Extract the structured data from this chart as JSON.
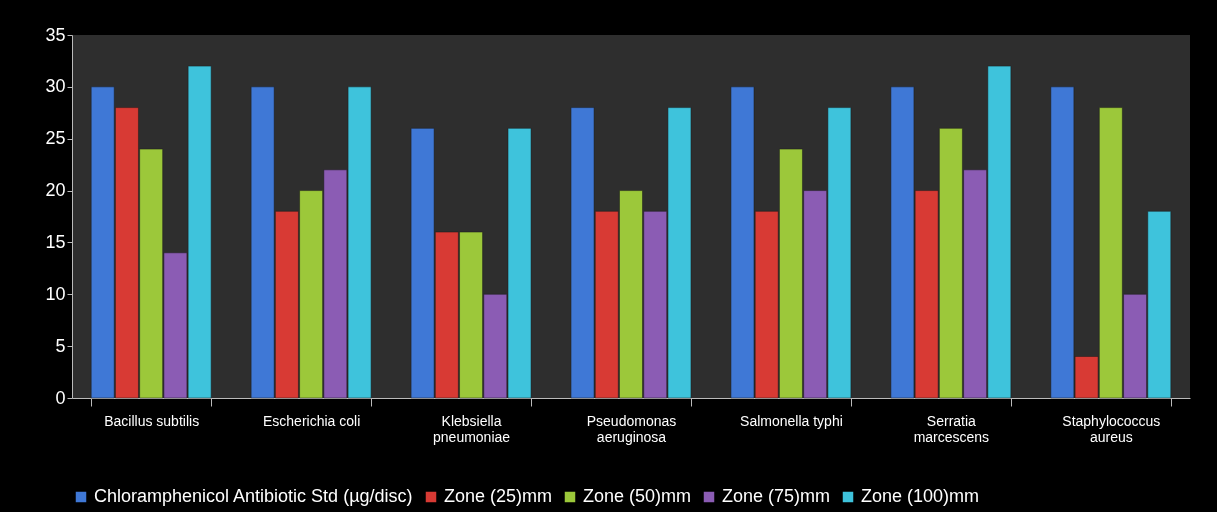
{
  "chart_data": {
    "type": "bar",
    "categories": [
      "Bacillus subtilis",
      "Escherichia coli",
      "Klebsiella pneumoniae",
      "Pseudomonas aeruginosa",
      "Salmonella typhi",
      "Serratia marcescens",
      "Staphylococcus aureus"
    ],
    "series": [
      {
        "name": "Chloramphenicol Antibiotic Std (µg/disc)",
        "color": "#3f78d6",
        "values": [
          30,
          30,
          26,
          28,
          30,
          30,
          30
        ]
      },
      {
        "name": "Zone (25)mm",
        "color": "#d83a34",
        "values": [
          28,
          18,
          16,
          18,
          18,
          20,
          4
        ]
      },
      {
        "name": "Zone (50)mm",
        "color": "#9cc83a",
        "values": [
          24,
          20,
          16,
          20,
          24,
          26,
          28
        ]
      },
      {
        "name": "Zone (75)mm",
        "color": "#8b5cb4",
        "values": [
          14,
          22,
          10,
          18,
          20,
          22,
          10
        ]
      },
      {
        "name": "Zone (100)mm",
        "color": "#3ec3dc",
        "values": [
          32,
          30,
          26,
          28,
          28,
          32,
          18
        ]
      }
    ],
    "ylim": [
      0,
      35
    ],
    "yticks": [
      0,
      5,
      10,
      15,
      20,
      25,
      30,
      35
    ],
    "grid": false,
    "legend": "bottom"
  }
}
